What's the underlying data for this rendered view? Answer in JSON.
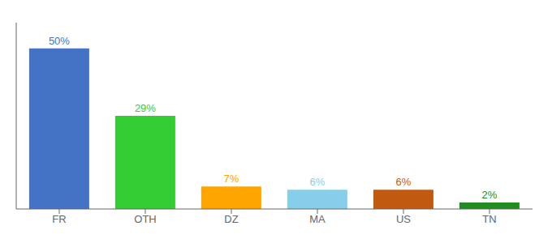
{
  "chart_data": {
    "type": "bar",
    "categories": [
      "FR",
      "OTH",
      "DZ",
      "MA",
      "US",
      "TN"
    ],
    "values": [
      50,
      29,
      7,
      6,
      6,
      2
    ],
    "value_labels": [
      "50%",
      "29%",
      "7%",
      "6%",
      "6%",
      "2%"
    ],
    "data_labels": true,
    "colors": [
      "#4472C4",
      "#33CC33",
      "#FFA500",
      "#87CEEB",
      "#C05A10",
      "#228B22"
    ],
    "ylim": [
      0,
      58
    ],
    "tick_labels": "x",
    "grid": false
  }
}
